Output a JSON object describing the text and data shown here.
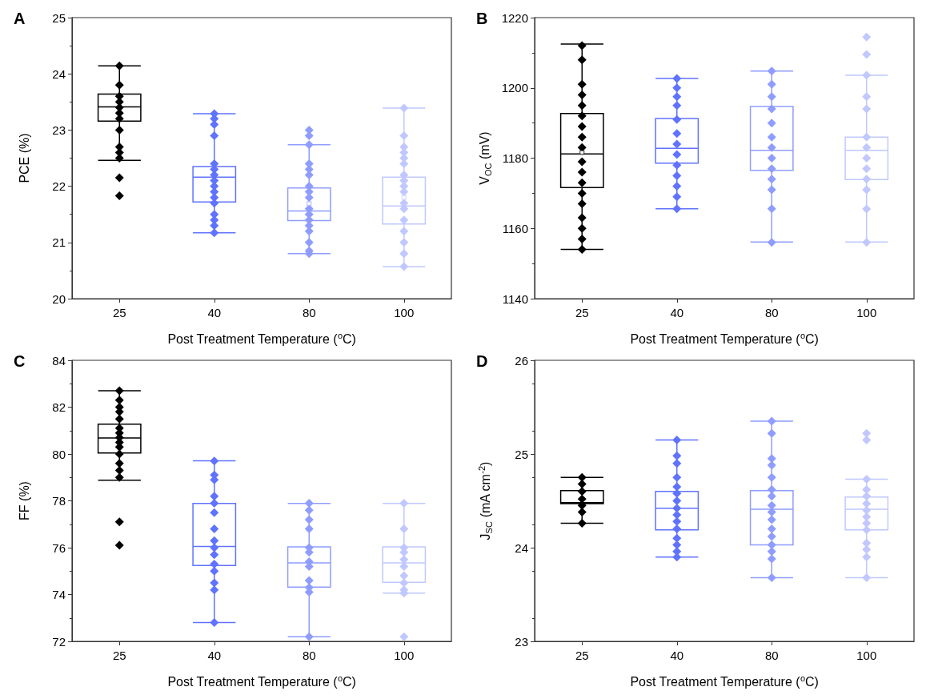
{
  "chart_data": [
    {
      "type": "box",
      "title": "A",
      "categories": [
        "25",
        "40",
        "80",
        "100"
      ],
      "xlabel": "Post Treatment Temperature ($^{o}$C)",
      "ylabel": "PCE (%)",
      "ylim": [
        20,
        25
      ],
      "yticks": [
        20,
        21,
        22,
        23,
        24,
        25
      ],
      "marker": "diamond",
      "colors": [
        "#000000",
        "#5f73ff",
        "#8f9dff",
        "#c0c8ff"
      ],
      "boxes": [
        {
          "low": 22.46,
          "q1": 23.16,
          "median": 23.41,
          "q3": 23.64,
          "high": 24.14
        },
        {
          "low": 21.17,
          "q1": 21.72,
          "median": 22.16,
          "q3": 22.35,
          "high": 23.29
        },
        {
          "low": 20.8,
          "q1": 21.39,
          "median": 21.56,
          "q3": 21.97,
          "high": 22.74,
          "mean": 21.69
        },
        {
          "low": 20.57,
          "q1": 21.33,
          "median": 21.65,
          "q3": 22.16,
          "high": 23.39,
          "mean": 21.8
        }
      ],
      "series": [
        {
          "type": "scatter",
          "color": "#000000",
          "x": [
            "25",
            "25",
            "25",
            "25",
            "25",
            "25",
            "25",
            "25",
            "25",
            "25",
            "25",
            "25",
            "25"
          ],
          "values": [
            24.14,
            23.8,
            23.6,
            23.5,
            23.4,
            23.3,
            23.2,
            23.0,
            22.7,
            22.6,
            22.5,
            22.15,
            21.83
          ]
        },
        {
          "type": "scatter",
          "color": "#5f73ff",
          "x": [
            "40",
            "40",
            "40",
            "40",
            "40",
            "40",
            "40",
            "40",
            "40",
            "40",
            "40",
            "40",
            "40",
            "40",
            "40",
            "40"
          ],
          "values": [
            23.29,
            23.2,
            23.1,
            22.9,
            22.4,
            22.3,
            22.2,
            22.1,
            22.0,
            21.9,
            21.8,
            21.7,
            21.5,
            21.4,
            21.3,
            21.17
          ]
        },
        {
          "type": "scatter",
          "color": "#8f9dff",
          "x": [
            "80",
            "80",
            "80",
            "80",
            "80",
            "80",
            "80",
            "80",
            "80",
            "80",
            "80",
            "80",
            "80",
            "80",
            "80",
            "80",
            "80"
          ],
          "values": [
            23.0,
            22.9,
            22.74,
            22.4,
            22.3,
            22.2,
            22.0,
            21.9,
            21.8,
            21.6,
            21.5,
            21.4,
            21.3,
            21.2,
            21.0,
            20.85,
            20.8
          ]
        },
        {
          "type": "scatter",
          "color": "#c0c8ff",
          "x": [
            "100",
            "100",
            "100",
            "100",
            "100",
            "100",
            "100",
            "100",
            "100",
            "100",
            "100",
            "100",
            "100",
            "100",
            "100",
            "100",
            "100"
          ],
          "values": [
            23.39,
            22.9,
            22.7,
            22.6,
            22.5,
            22.4,
            22.2,
            22.1,
            22.0,
            21.9,
            21.7,
            21.6,
            21.4,
            21.2,
            21.0,
            20.8,
            20.57
          ]
        }
      ]
    },
    {
      "type": "box",
      "title": "B",
      "categories": [
        "25",
        "40",
        "80",
        "100"
      ],
      "xlabel": "Post Treatment Temperature ($^{o}$C)",
      "ylabel": "V$_{OC}$ (mV)",
      "ylim": [
        1140,
        1220
      ],
      "yticks": [
        1140,
        1160,
        1180,
        1200,
        1220
      ],
      "marker": "diamond",
      "colors": [
        "#000000",
        "#5f73ff",
        "#8f9dff",
        "#c0c8ff"
      ],
      "boxes": [
        {
          "low": 1154,
          "q1": 1171.6,
          "median": 1181.2,
          "q3": 1192.7,
          "high": 1212.5,
          "mean": 1181.6
        },
        {
          "low": 1165.6,
          "q1": 1178.6,
          "median": 1182.8,
          "q3": 1191.3,
          "high": 1202.7
        },
        {
          "low": 1156.1,
          "q1": 1176.5,
          "median": 1182.2,
          "q3": 1194.7,
          "high": 1204.8
        },
        {
          "low": 1156.1,
          "q1": 1173.9,
          "median": 1182.2,
          "q3": 1186,
          "high": 1203.6
        }
      ],
      "series": [
        {
          "type": "scatter",
          "color": "#000000",
          "x": [
            "25",
            "25",
            "25",
            "25",
            "25",
            "25",
            "25",
            "25",
            "25",
            "25",
            "25",
            "25",
            "25",
            "25",
            "25",
            "25",
            "25",
            "25"
          ],
          "values": [
            1212,
            1208,
            1201,
            1198,
            1195,
            1192,
            1189,
            1186,
            1183,
            1179,
            1176,
            1173,
            1170,
            1167,
            1163,
            1160,
            1157,
            1154
          ]
        },
        {
          "type": "scatter",
          "color": "#5f73ff",
          "x": [
            "40",
            "40",
            "40",
            "40",
            "40",
            "40",
            "40",
            "40",
            "40",
            "40",
            "40",
            "40",
            "40"
          ],
          "values": [
            1202.7,
            1200,
            1197.5,
            1195,
            1191,
            1187,
            1184,
            1181,
            1178,
            1175,
            1172,
            1169,
            1165.6
          ]
        },
        {
          "type": "scatter",
          "color": "#8f9dff",
          "x": [
            "80",
            "80",
            "80",
            "80",
            "80",
            "80",
            "80",
            "80",
            "80",
            "80",
            "80",
            "80",
            "80"
          ],
          "values": [
            1204.8,
            1201,
            1197.5,
            1194,
            1190,
            1186,
            1183,
            1180,
            1177,
            1174,
            1171,
            1165.6,
            1156
          ]
        },
        {
          "type": "scatter",
          "color": "#c0c8ff",
          "x": [
            "100",
            "100",
            "100",
            "100",
            "100",
            "100",
            "100",
            "100",
            "100",
            "100",
            "100",
            "100",
            "100"
          ],
          "values": [
            1214.5,
            1209.5,
            1203.6,
            1197.5,
            1194,
            1186,
            1183,
            1180,
            1177,
            1174,
            1171,
            1165.5,
            1156
          ]
        }
      ]
    },
    {
      "type": "box",
      "title": "C",
      "categories": [
        "25",
        "40",
        "80",
        "100"
      ],
      "xlabel": "Post Treatment Temperature ($^{o}$C)",
      "ylabel": "FF (%)",
      "ylim": [
        72,
        84
      ],
      "yticks": [
        72,
        74,
        76,
        78,
        80,
        82,
        84
      ],
      "marker": "diamond",
      "colors": [
        "#000000",
        "#5f73ff",
        "#8f9dff",
        "#c0c8ff"
      ],
      "boxes": [
        {
          "low": 78.88,
          "q1": 80.04,
          "median": 80.68,
          "q3": 81.27,
          "high": 82.7
        },
        {
          "low": 72.8,
          "q1": 75.24,
          "median": 76.05,
          "q3": 77.89,
          "high": 79.71
        },
        {
          "low": 72.2,
          "q1": 74.32,
          "median": 75.35,
          "q3": 76.03,
          "high": 77.89
        },
        {
          "low": 74.06,
          "q1": 74.52,
          "median": 75.35,
          "q3": 76.03,
          "high": 77.89
        }
      ],
      "series": [
        {
          "type": "scatter",
          "color": "#000000",
          "x": [
            "25",
            "25",
            "25",
            "25",
            "25",
            "25",
            "25",
            "25",
            "25",
            "25",
            "25",
            "25",
            "25",
            "25",
            "25",
            "25"
          ],
          "values": [
            82.7,
            82.3,
            82.0,
            81.8,
            81.5,
            81.1,
            80.9,
            80.7,
            80.5,
            80.3,
            80.0,
            79.6,
            79.3,
            79.0,
            77.1,
            76.1
          ]
        },
        {
          "type": "scatter",
          "color": "#5f73ff",
          "x": [
            "40",
            "40",
            "40",
            "40",
            "40",
            "40",
            "40",
            "40",
            "40",
            "40",
            "40",
            "40",
            "40",
            "40",
            "40"
          ],
          "values": [
            79.7,
            79.1,
            78.9,
            78.2,
            77.9,
            77.5,
            76.8,
            76.3,
            76.0,
            75.7,
            75.3,
            75.0,
            74.5,
            74.2,
            72.8
          ]
        },
        {
          "type": "scatter",
          "color": "#8f9dff",
          "x": [
            "80",
            "80",
            "80",
            "80",
            "80",
            "80",
            "80",
            "80",
            "80",
            "80",
            "80",
            "80"
          ],
          "values": [
            77.9,
            77.6,
            77.2,
            76.8,
            76.0,
            75.8,
            75.4,
            75.2,
            74.6,
            74.3,
            74.1,
            72.2
          ]
        },
        {
          "type": "scatter",
          "color": "#c0c8ff",
          "x": [
            "100",
            "100",
            "100",
            "100",
            "100",
            "100",
            "100",
            "100",
            "100",
            "100",
            "100"
          ],
          "values": [
            77.9,
            76.8,
            76.0,
            75.8,
            75.5,
            75.2,
            74.8,
            74.5,
            74.2,
            74.06,
            72.2
          ]
        }
      ]
    },
    {
      "type": "box",
      "title": "D",
      "categories": [
        "25",
        "40",
        "80",
        "100"
      ],
      "xlabel": "Post Treatment Temperature ($^{o}$C)",
      "ylabel": "J$_{SC}$ (mA cm$^{-2}$)",
      "ylim": [
        23,
        26
      ],
      "yticks": [
        23,
        24,
        25,
        26
      ],
      "marker": "diamond",
      "colors": [
        "#000000",
        "#5f73ff",
        "#8f9dff",
        "#c0c8ff"
      ],
      "boxes": [
        {
          "low": 24.26,
          "q1": 24.47,
          "median": 24.48,
          "q3": 24.61,
          "high": 24.75
        },
        {
          "low": 23.9,
          "q1": 24.19,
          "median": 24.42,
          "q3": 24.6,
          "high": 25.15
        },
        {
          "low": 23.68,
          "q1": 24.03,
          "median": 24.41,
          "q3": 24.61,
          "high": 25.35
        },
        {
          "low": 23.68,
          "q1": 24.19,
          "median": 24.41,
          "q3": 24.54,
          "high": 24.73
        }
      ],
      "series": [
        {
          "type": "scatter",
          "color": "#000000",
          "x": [
            "25",
            "25",
            "25",
            "25",
            "25",
            "25",
            "25"
          ],
          "values": [
            24.75,
            24.68,
            24.6,
            24.52,
            24.45,
            24.38,
            24.26
          ]
        },
        {
          "type": "scatter",
          "color": "#5f73ff",
          "x": [
            "40",
            "40",
            "40",
            "40",
            "40",
            "40",
            "40",
            "40",
            "40",
            "40",
            "40",
            "40",
            "40",
            "40",
            "40"
          ],
          "values": [
            25.15,
            24.98,
            24.9,
            24.75,
            24.65,
            24.58,
            24.5,
            24.42,
            24.35,
            24.28,
            24.2,
            24.1,
            24.03,
            23.96,
            23.9
          ]
        },
        {
          "type": "scatter",
          "color": "#8f9dff",
          "x": [
            "80",
            "80",
            "80",
            "80",
            "80",
            "80",
            "80",
            "80",
            "80",
            "80",
            "80",
            "80",
            "80",
            "80",
            "80",
            "80"
          ],
          "values": [
            25.35,
            25.22,
            24.95,
            24.88,
            24.75,
            24.62,
            24.55,
            24.45,
            24.38,
            24.3,
            24.2,
            24.12,
            24.03,
            23.96,
            23.88,
            23.68
          ]
        },
        {
          "type": "scatter",
          "color": "#c0c8ff",
          "x": [
            "100",
            "100",
            "100",
            "100",
            "100",
            "100",
            "100",
            "100",
            "100",
            "100",
            "100",
            "100",
            "100",
            "100"
          ],
          "values": [
            25.22,
            25.15,
            24.73,
            24.62,
            24.55,
            24.47,
            24.4,
            24.33,
            24.26,
            24.19,
            24.05,
            23.98,
            23.9,
            23.68
          ]
        }
      ]
    }
  ]
}
